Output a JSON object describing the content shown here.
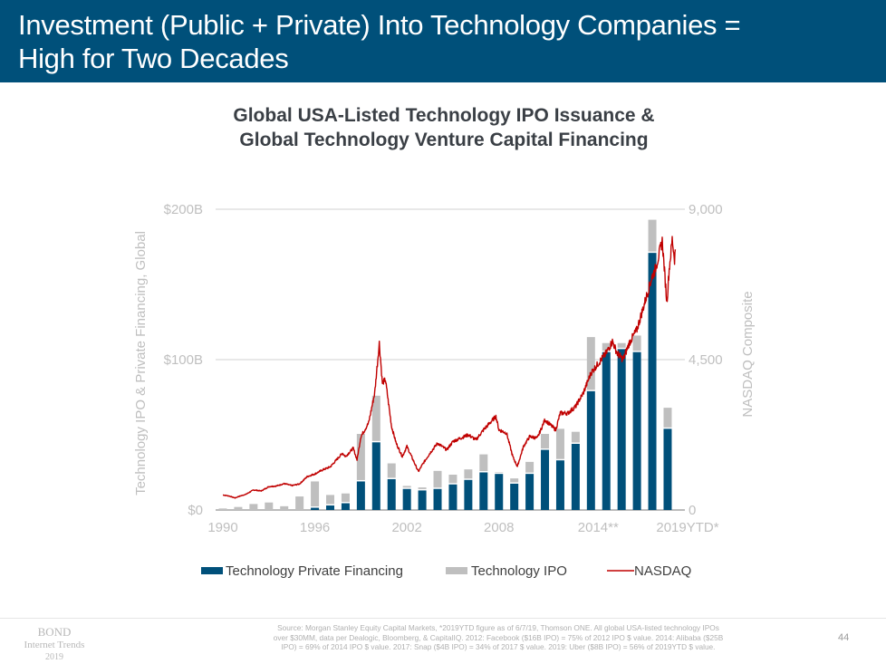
{
  "header": {
    "title_line1": "Investment (Public + Private) Into Technology Companies =",
    "title_line2": "High for Two Decades"
  },
  "colors": {
    "header_bg": "#00507a",
    "private_financing": "#00507a",
    "ipo": "#bfbfbf",
    "nasdaq": "#c00000"
  },
  "chart_data": {
    "type": "bar",
    "title_line1": "Global USA-Listed Technology IPO Issuance &",
    "title_line2": "Global Technology Venture Capital Financing",
    "stacked": true,
    "categories": [
      "1990",
      "1991",
      "1992",
      "1993",
      "1994",
      "1995",
      "1996",
      "1997",
      "1998",
      "1999",
      "2000",
      "2001",
      "2002",
      "2003",
      "2004",
      "2005",
      "2006",
      "2007",
      "2008",
      "2009",
      "2010",
      "2011",
      "2012",
      "2013",
      "2014",
      "2015",
      "2016",
      "2017",
      "2018",
      "2019YTD"
    ],
    "x_tick_labels": [
      "1990",
      "1996",
      "2002",
      "2008",
      "2014**",
      "2019YTD*"
    ],
    "x_tick_indices": [
      0,
      6,
      12,
      18,
      24,
      29
    ],
    "series": [
      {
        "name": "Technology Private Financing",
        "axis": "left",
        "values": [
          0,
          0,
          0,
          0,
          0,
          0,
          1.5,
          3,
          4.5,
          19,
          45,
          20.5,
          14,
          13,
          14,
          17,
          20,
          25,
          24,
          17.5,
          24,
          40,
          33,
          44,
          79,
          105,
          107,
          105,
          171,
          54
        ]
      },
      {
        "name": "Technology IPO",
        "axis": "left",
        "values": [
          1,
          2,
          4,
          5,
          2.5,
          9,
          17.5,
          7,
          6.5,
          31.6,
          31,
          10.5,
          2,
          2,
          12,
          6.5,
          7,
          12,
          1,
          3.5,
          8,
          10.6,
          21,
          8,
          36,
          6,
          4,
          11,
          22,
          14
        ]
      },
      {
        "name": "NASDAQ",
        "axis": "right",
        "type": "line",
        "x": [
          1990.0,
          1990.4,
          1990.8,
          1991.0,
          1991.5,
          1992.0,
          1992.5,
          1993.0,
          1993.5,
          1994.0,
          1994.5,
          1995.0,
          1995.5,
          1996.0,
          1996.5,
          1997.0,
          1997.5,
          1997.8,
          1998.0,
          1998.5,
          1998.75,
          1999.0,
          1999.5,
          1999.9,
          2000.2,
          2000.4,
          2000.6,
          2000.8,
          2001.0,
          2001.3,
          2001.7,
          2002.0,
          2002.5,
          2002.75,
          2003.0,
          2003.5,
          2004.0,
          2004.6,
          2005.0,
          2005.5,
          2006.0,
          2006.5,
          2007.0,
          2007.8,
          2008.0,
          2008.5,
          2008.9,
          2009.2,
          2009.6,
          2010.0,
          2010.5,
          2011.0,
          2011.7,
          2012.0,
          2012.5,
          2013.0,
          2013.5,
          2014.0,
          2014.5,
          2015.0,
          2015.4,
          2015.7,
          2016.1,
          2016.5,
          2017.0,
          2017.5,
          2018.0,
          2018.2,
          2018.65,
          2018.95,
          2019.1,
          2019.3,
          2019.45,
          2019.5
        ],
        "values": [
          450,
          420,
          360,
          400,
          470,
          600,
          570,
          700,
          720,
          790,
          730,
          780,
          1000,
          1080,
          1200,
          1290,
          1550,
          1700,
          1600,
          1850,
          1500,
          2200,
          2600,
          3500,
          5000,
          3800,
          3900,
          3200,
          2500,
          2000,
          1600,
          1900,
          1400,
          1150,
          1350,
          1700,
          2000,
          1800,
          2050,
          2150,
          2250,
          2100,
          2400,
          2800,
          2400,
          2300,
          1600,
          1300,
          1900,
          2200,
          2150,
          2700,
          2400,
          2900,
          2900,
          3100,
          3500,
          4100,
          4400,
          4700,
          5050,
          4700,
          4500,
          5000,
          5400,
          6200,
          7000,
          7200,
          8050,
          6200,
          7200,
          8100,
          7500,
          7800
        ]
      }
    ],
    "left_axis": {
      "title": "Technology IPO & Private Financing, Global",
      "ticks": [
        "$0",
        "$100B",
        "$200B"
      ],
      "range": [
        0,
        200
      ],
      "unit": "$B"
    },
    "right_axis": {
      "title": "NASDAQ Composite",
      "ticks": [
        "0",
        "4,500",
        "9,000"
      ],
      "range": [
        0,
        9000
      ]
    },
    "grid": true,
    "legend": {
      "placement": "bottom",
      "items": [
        "Technology Private Financing",
        "Technology IPO",
        "NASDAQ"
      ]
    }
  },
  "footer": {
    "brand_line1": "BOND",
    "brand_line2": "Internet Trends",
    "brand_line3": "2019",
    "source_line1": "Source: Morgan Stanley Equity Capital Markets, *2019YTD figure as of 6/7/19, Thomson ONE. All global USA-listed technology IPOs",
    "source_line2": "over $30MM, data per Dealogic, Bloomberg, & CapitalIQ.  2012: Facebook ($16B IPO) = 75% of 2012 IPO $ value. 2014: Alibaba ($25B",
    "source_line3": "IPO) = 69% of 2014 IPO $ value. 2017: Snap ($4B IPO) = 34% of 2017 $ value. 2019: Uber ($8B IPO) = 56% of 2019YTD $ value.",
    "page_number": "44"
  }
}
